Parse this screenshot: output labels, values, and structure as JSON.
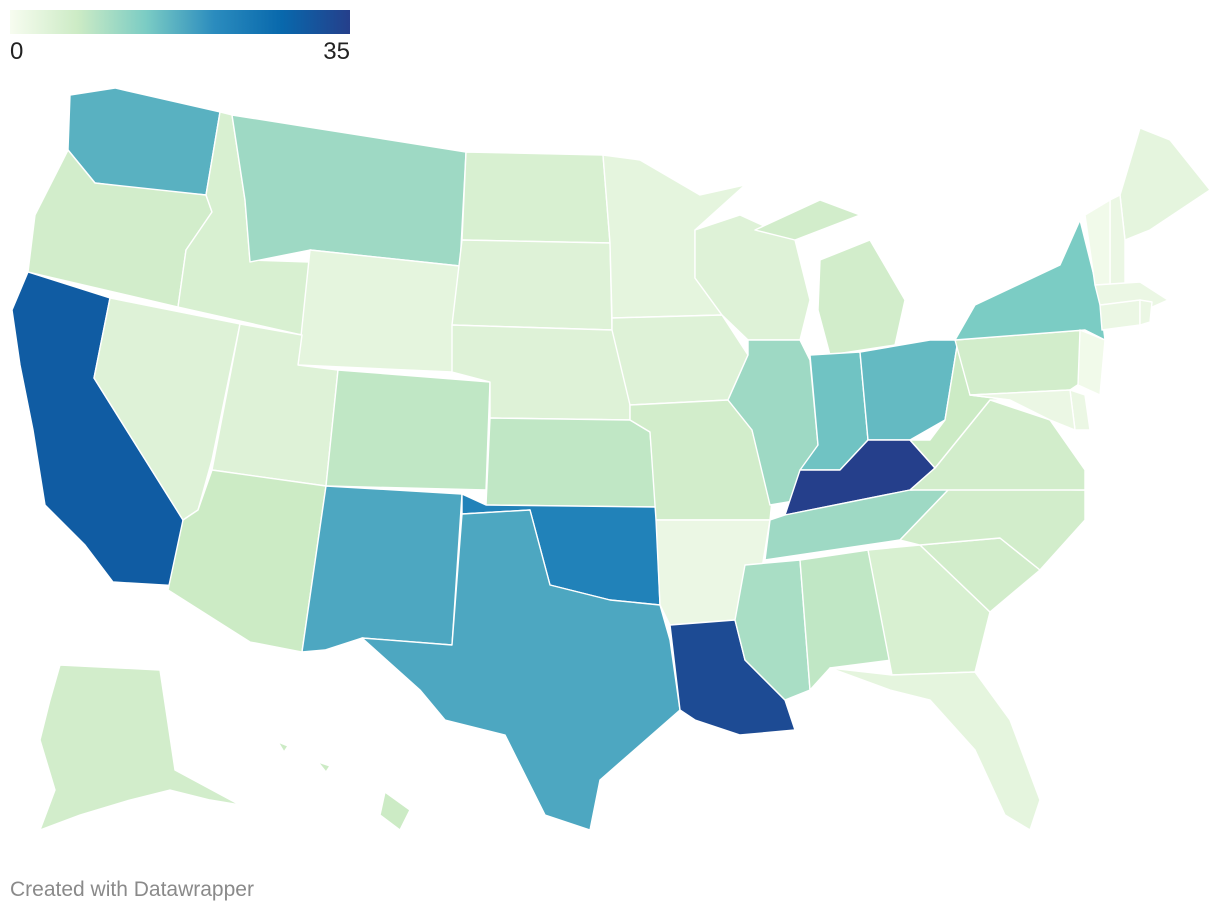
{
  "legend": {
    "min_label": "0",
    "max_label": "35",
    "min": 0,
    "max": 35,
    "colors": [
      "#f7fcf0",
      "#ccebc5",
      "#7bccc4",
      "#2b8cbe",
      "#0868ac",
      "#253f8b"
    ]
  },
  "credit": "Created with Datawrapper",
  "chart_data": {
    "type": "choropleth",
    "value_range": [
      0,
      35
    ],
    "regions": [
      {
        "id": "WA",
        "value": 17
      },
      {
        "id": "OR",
        "value": 6
      },
      {
        "id": "CA",
        "value": 30
      },
      {
        "id": "ID",
        "value": 5
      },
      {
        "id": "NV",
        "value": 4
      },
      {
        "id": "MT",
        "value": 11
      },
      {
        "id": "WY",
        "value": 3
      },
      {
        "id": "UT",
        "value": 4
      },
      {
        "id": "AZ",
        "value": 7
      },
      {
        "id": "CO",
        "value": 8
      },
      {
        "id": "NM",
        "value": 18
      },
      {
        "id": "ND",
        "value": 5
      },
      {
        "id": "SD",
        "value": 4
      },
      {
        "id": "NE",
        "value": 4
      },
      {
        "id": "KS",
        "value": 8
      },
      {
        "id": "OK",
        "value": 23
      },
      {
        "id": "TX",
        "value": 18
      },
      {
        "id": "MN",
        "value": 3
      },
      {
        "id": "IA",
        "value": 4
      },
      {
        "id": "MO",
        "value": 6
      },
      {
        "id": "AR",
        "value": 2
      },
      {
        "id": "LA",
        "value": 33
      },
      {
        "id": "WI",
        "value": 4
      },
      {
        "id": "IL",
        "value": 11
      },
      {
        "id": "MI",
        "value": 6
      },
      {
        "id": "IN",
        "value": 15
      },
      {
        "id": "OH",
        "value": 16
      },
      {
        "id": "KY",
        "value": 35
      },
      {
        "id": "TN",
        "value": 11
      },
      {
        "id": "MS",
        "value": 10
      },
      {
        "id": "AL",
        "value": 8
      },
      {
        "id": "GA",
        "value": 5
      },
      {
        "id": "FL",
        "value": 3
      },
      {
        "id": "SC",
        "value": 6
      },
      {
        "id": "NC",
        "value": 6
      },
      {
        "id": "VA",
        "value": 6
      },
      {
        "id": "WV",
        "value": 7
      },
      {
        "id": "PA",
        "value": 6
      },
      {
        "id": "NY",
        "value": 14
      },
      {
        "id": "ME",
        "value": 3
      },
      {
        "id": "NH",
        "value": 2
      },
      {
        "id": "VT",
        "value": 1
      },
      {
        "id": "MA",
        "value": 2
      },
      {
        "id": "CT",
        "value": 2
      },
      {
        "id": "RI",
        "value": 2
      },
      {
        "id": "NJ",
        "value": 1
      },
      {
        "id": "DE",
        "value": 2
      },
      {
        "id": "MD",
        "value": 2
      },
      {
        "id": "AK",
        "value": 6
      },
      {
        "id": "HI",
        "value": 7
      }
    ]
  }
}
